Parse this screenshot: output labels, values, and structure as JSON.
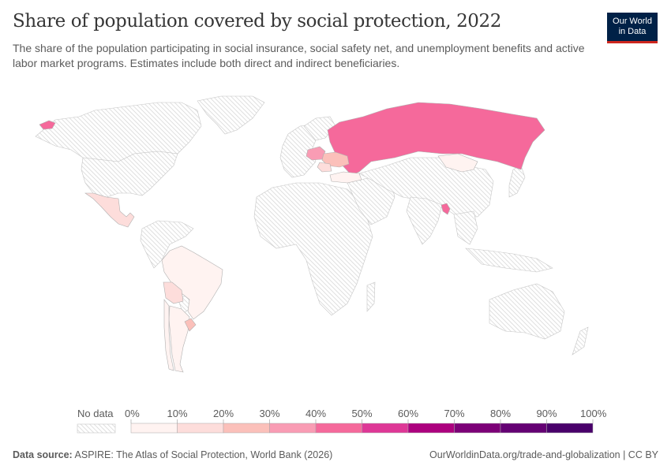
{
  "header": {
    "title": "Share of population covered by social protection, 2022",
    "subtitle": "The share of the population participating in social insurance, social safety net, and unemployment benefits and active labor market programs. Estimates include both direct and indirect beneficiaries.",
    "logo_line1": "Our World",
    "logo_line2": "in Data"
  },
  "legend": {
    "no_data_label": "No data",
    "bins": [
      {
        "from": 0,
        "to": 10,
        "color": "#fff3f1"
      },
      {
        "from": 10,
        "to": 20,
        "color": "#fddddb"
      },
      {
        "from": 20,
        "to": 30,
        "color": "#fbc0ba"
      },
      {
        "from": 30,
        "to": 40,
        "color": "#f99cb4"
      },
      {
        "from": 40,
        "to": 50,
        "color": "#f5699b"
      },
      {
        "from": 50,
        "to": 60,
        "color": "#de3796"
      },
      {
        "from": 60,
        "to": 70,
        "color": "#ac017e"
      },
      {
        "from": 70,
        "to": 80,
        "color": "#7c0177"
      },
      {
        "from": 80,
        "to": 90,
        "color": "#640173"
      },
      {
        "from": 90,
        "to": 100,
        "color": "#49006a"
      }
    ],
    "tick_labels": [
      "0%",
      "10%",
      "20%",
      "30%",
      "40%",
      "50%",
      "60%",
      "70%",
      "80%",
      "90%",
      "100%"
    ]
  },
  "footer": {
    "source_label": "Data source:",
    "source_text": "ASPIRE: The Atlas of Social Protection, World Bank (2026)",
    "url_text": "OurWorldinData.org/trade-and-globalization | CC BY"
  },
  "chart_data": {
    "type": "choropleth",
    "title": "Share of population covered by social protection, 2022",
    "unit": "%",
    "scale": [
      0,
      100
    ],
    "bin_step": 10,
    "countries": [
      {
        "name": "Russia",
        "bin": "40-50%"
      },
      {
        "name": "Poland",
        "bin": "30-40%"
      },
      {
        "name": "Ukraine",
        "bin": "20-30%"
      },
      {
        "name": "Romania",
        "bin": "10-20%"
      },
      {
        "name": "Turkey",
        "bin": "0-10%"
      },
      {
        "name": "Mongolia",
        "bin": "0-10%"
      },
      {
        "name": "Bangladesh",
        "bin": "40-50%"
      },
      {
        "name": "Mexico",
        "bin": "10-20%"
      },
      {
        "name": "Brazil",
        "bin": "0-10%"
      },
      {
        "name": "Bolivia",
        "bin": "10-20%"
      },
      {
        "name": "Argentina",
        "bin": "0-10%"
      },
      {
        "name": "Chile",
        "bin": "0-10%"
      },
      {
        "name": "Uruguay",
        "bin": "10-20%"
      }
    ],
    "no_data_regions": [
      "United States",
      "Canada",
      "Greenland",
      "Western Europe",
      "Africa",
      "Middle East",
      "India",
      "China",
      "Southeast Asia",
      "Australia",
      "Colombia",
      "Venezuela",
      "Peru",
      "Paraguay"
    ]
  }
}
